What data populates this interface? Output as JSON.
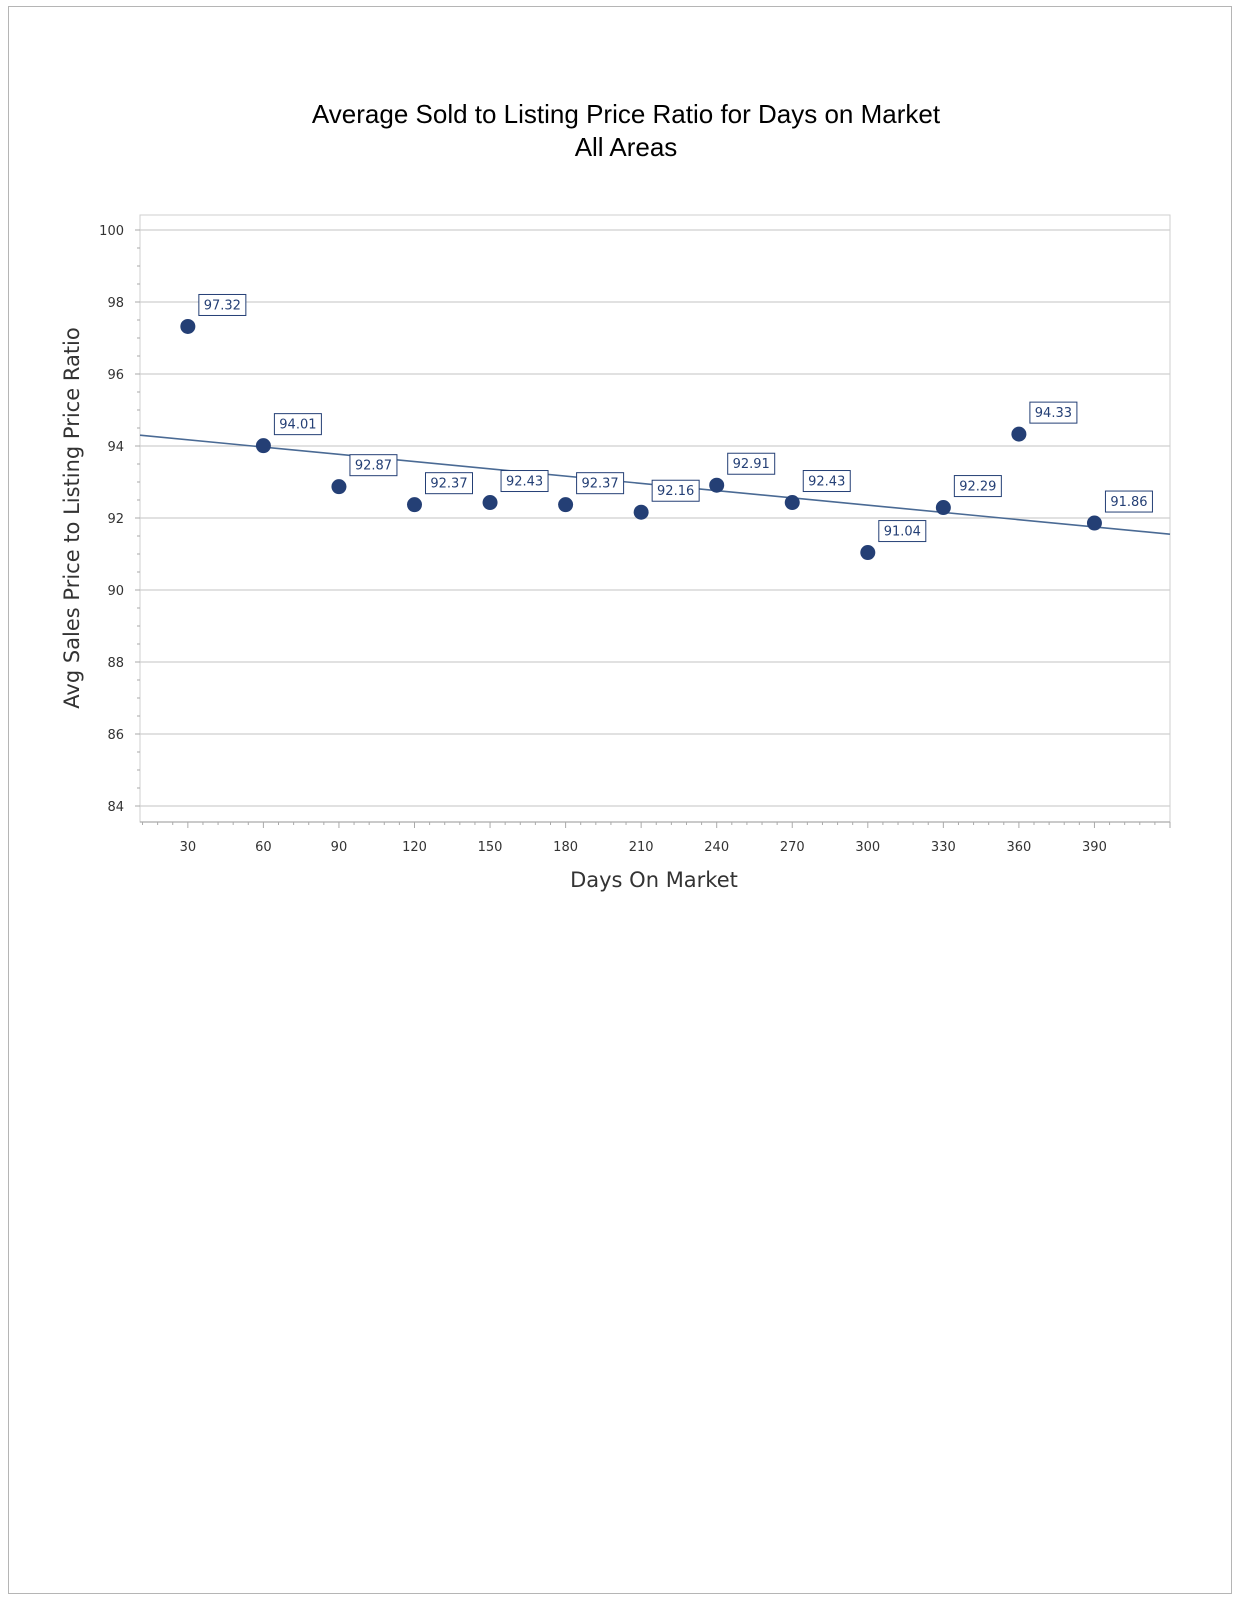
{
  "chart_data": {
    "type": "scatter",
    "title": "Average Sold to Listing Price Ratio for Days on Market",
    "subtitle": "All Areas",
    "xlabel": "Days On Market",
    "ylabel": "Avg Sales Price to Listing Price Ratio",
    "xlim": [
      11,
      420
    ],
    "ylim": [
      84,
      100
    ],
    "x_ticks": [
      30,
      60,
      90,
      120,
      150,
      180,
      210,
      240,
      270,
      300,
      330,
      360,
      390
    ],
    "y_ticks": [
      84,
      86,
      88,
      90,
      92,
      94,
      96,
      98,
      100
    ],
    "grid": true,
    "legend": "none",
    "marker_color": "#243f75",
    "series": [
      {
        "points": [
          {
            "x": 30,
            "y": 97.32,
            "label": "97.32"
          },
          {
            "x": 60,
            "y": 94.01,
            "label": "94.01"
          },
          {
            "x": 90,
            "y": 92.87,
            "label": "92.87"
          },
          {
            "x": 120,
            "y": 92.37,
            "label": "92.37"
          },
          {
            "x": 150,
            "y": 92.43,
            "label": "92.43"
          },
          {
            "x": 180,
            "y": 92.37,
            "label": "92.37"
          },
          {
            "x": 210,
            "y": 92.16,
            "label": "92.16"
          },
          {
            "x": 240,
            "y": 92.91,
            "label": "92.91"
          },
          {
            "x": 270,
            "y": 92.43,
            "label": "92.43"
          },
          {
            "x": 300,
            "y": 91.04,
            "label": "91.04"
          },
          {
            "x": 330,
            "y": 92.29,
            "label": "92.29"
          },
          {
            "x": 360,
            "y": 94.33,
            "label": "94.33"
          },
          {
            "x": 390,
            "y": 91.86,
            "label": "91.86"
          }
        ]
      }
    ],
    "trendline": {
      "type": "linear",
      "color": "#4a6a94",
      "from": {
        "x": 11,
        "y": 94.3
      },
      "to": {
        "x": 420,
        "y": 91.55
      }
    }
  }
}
